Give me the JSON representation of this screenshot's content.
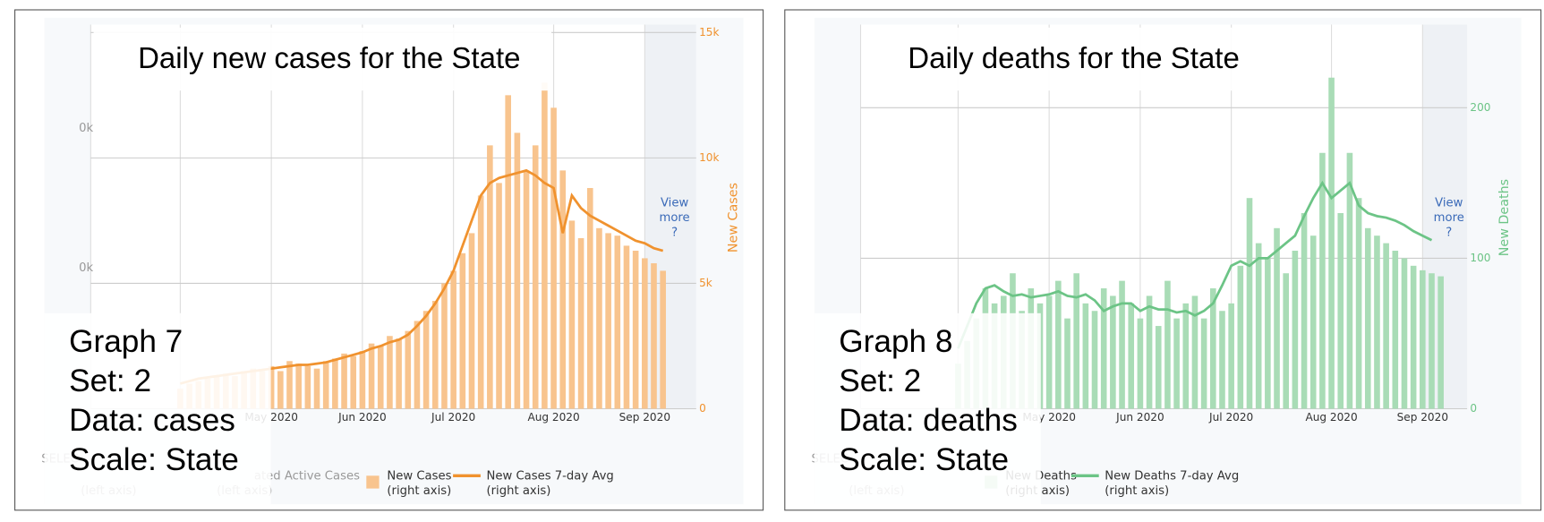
{
  "chart_data": [
    {
      "type": "bar",
      "title": "Daily new cases for the State",
      "y_label": "New Cases",
      "annotations": [
        "Graph 7",
        "Set: 2",
        "Data: cases",
        "Scale: State"
      ],
      "link": [
        "View",
        "more",
        "?"
      ],
      "faded_texts": [
        "SELEC",
        "ated Active Cases",
        "(left axis)",
        "(left axis)",
        "0k",
        "0k"
      ],
      "categories": [
        null,
        null,
        null,
        null,
        null,
        null,
        null,
        null,
        null,
        null,
        "May 2020",
        null,
        null,
        null,
        null,
        null,
        null,
        null,
        null,
        null,
        "Jun 2020",
        null,
        null,
        null,
        null,
        null,
        null,
        null,
        null,
        null,
        "Jul 2020",
        null,
        null,
        null,
        null,
        null,
        null,
        null,
        null,
        null,
        null,
        "Aug 2020",
        null,
        null,
        null,
        null,
        null,
        null,
        null,
        null,
        null,
        "Sep 2020",
        null,
        null
      ],
      "series": [
        {
          "name": "New Cases",
          "note": "(right axis)",
          "kind": "bar",
          "color": "#f8c48e",
          "values": [
            800,
            1000,
            1100,
            1200,
            1300,
            1400,
            1300,
            1500,
            1600,
            1500,
            1700,
            1500,
            1900,
            1800,
            1700,
            1600,
            1900,
            2000,
            2200,
            2100,
            2300,
            2600,
            2500,
            2900,
            2800,
            3100,
            3500,
            3900,
            4300,
            5000,
            5500,
            6200,
            7000,
            8500,
            10500,
            9000,
            12500,
            11000,
            9500,
            10500,
            13000,
            12000,
            9500,
            7500,
            6800,
            8800,
            7200,
            7000,
            6900,
            6500,
            6300,
            6000,
            5800,
            5500
          ]
        },
        {
          "name": "New Cases 7-day Avg",
          "note": "(right axis)",
          "kind": "line",
          "color": "#f0922e",
          "values": [
            1000,
            1100,
            1200,
            1250,
            1300,
            1350,
            1400,
            1450,
            1500,
            1550,
            1600,
            1650,
            1700,
            1750,
            1750,
            1800,
            1850,
            1950,
            2050,
            2150,
            2250,
            2400,
            2500,
            2650,
            2750,
            2950,
            3300,
            3700,
            4200,
            4800,
            5500,
            6500,
            7500,
            8500,
            9000,
            9200,
            9300,
            9400,
            9500,
            9300,
            9000,
            8800,
            7000,
            8500,
            8000,
            7700,
            7500,
            7300,
            7100,
            6900,
            6700,
            6600,
            6400,
            6300
          ]
        }
      ],
      "ylim": [
        0,
        15000
      ],
      "yticks": [
        0,
        {
          "value": 5000,
          "label": "5k"
        },
        {
          "value": 10000,
          "label": "10k"
        },
        {
          "value": 15000,
          "label": "15k"
        }
      ]
    },
    {
      "type": "bar",
      "title": "Daily deaths for the State",
      "y_label": "New Deaths",
      "annotations": [
        "Graph 8",
        "Set: 2",
        "Data: deaths",
        "Scale: State"
      ],
      "link": [
        "View",
        "more",
        "?"
      ],
      "faded_texts": [
        "SELEC",
        "(left axis)"
      ],
      "categories": [
        null,
        null,
        null,
        null,
        null,
        null,
        null,
        null,
        null,
        null,
        "May 2020",
        null,
        null,
        null,
        null,
        null,
        null,
        null,
        null,
        null,
        "Jun 2020",
        null,
        null,
        null,
        null,
        null,
        null,
        null,
        null,
        null,
        "Jul 2020",
        null,
        null,
        null,
        null,
        null,
        null,
        null,
        null,
        null,
        null,
        "Aug 2020",
        null,
        null,
        null,
        null,
        null,
        null,
        null,
        null,
        null,
        "Sep 2020",
        null,
        null
      ],
      "series": [
        {
          "name": "New Deaths",
          "note": "(right axis)",
          "kind": "bar",
          "color": "#a9dcb6",
          "values": [
            30,
            45,
            60,
            80,
            70,
            75,
            90,
            65,
            80,
            70,
            75,
            85,
            60,
            90,
            70,
            65,
            80,
            75,
            85,
            70,
            60,
            75,
            55,
            85,
            60,
            70,
            75,
            60,
            80,
            65,
            70,
            95,
            140,
            110,
            100,
            120,
            90,
            105,
            130,
            115,
            170,
            220,
            130,
            170,
            140,
            120,
            115,
            110,
            105,
            100,
            95,
            92,
            90,
            88
          ]
        },
        {
          "name": "New Deaths 7-day Avg",
          "note": "(right axis)",
          "kind": "line",
          "color": "#6cc486",
          "values": [
            40,
            55,
            70,
            80,
            82,
            78,
            75,
            76,
            74,
            75,
            76,
            78,
            75,
            74,
            76,
            72,
            65,
            68,
            70,
            70,
            65,
            68,
            66,
            66,
            64,
            65,
            62,
            65,
            70,
            82,
            95,
            98,
            95,
            100,
            100,
            105,
            110,
            115,
            128,
            140,
            150,
            140,
            145,
            150,
            135,
            130,
            128,
            127,
            125,
            122,
            118,
            115,
            112,
            null
          ]
        }
      ],
      "ylim": [
        0,
        250
      ],
      "yticks": [
        0,
        100,
        200
      ]
    }
  ]
}
